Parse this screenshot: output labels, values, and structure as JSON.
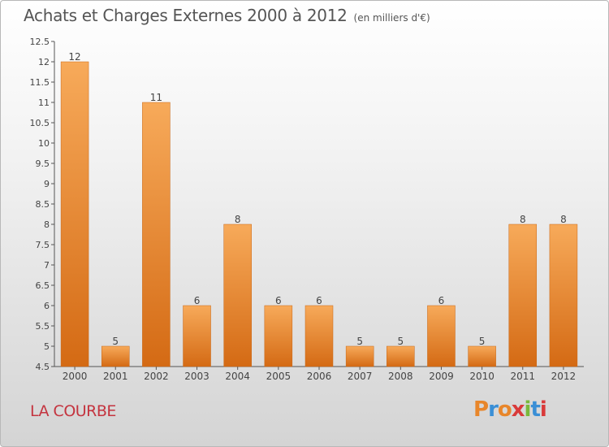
{
  "title": "Achats et Charges Externes 2000 à 2012",
  "subtitle": "(en milliers d'€)",
  "location": "LA COURBE",
  "logo_text": "Proxiti",
  "logo_colors": [
    "#e8862a",
    "#3a8fd6",
    "#e8862a",
    "#d93a3a",
    "#7ab83a",
    "#3a8fd6",
    "#d93a3a"
  ],
  "chart_data": {
    "type": "bar",
    "categories": [
      "2000",
      "2001",
      "2002",
      "2003",
      "2004",
      "2005",
      "2006",
      "2007",
      "2008",
      "2009",
      "2010",
      "2011",
      "2012"
    ],
    "values": [
      12,
      5,
      11,
      6,
      8,
      6,
      6,
      5,
      5,
      6,
      5,
      8,
      8
    ],
    "ylim": [
      4.5,
      12.5
    ],
    "yticks": [
      "4.5",
      "5",
      "5.5",
      "6",
      "6.5",
      "7",
      "7.5",
      "8",
      "8.5",
      "9",
      "9.5",
      "10",
      "10.5",
      "11",
      "11.5",
      "12",
      "12.5"
    ],
    "bar_color": "#e8862a",
    "grid": false,
    "xlabel": "",
    "ylabel": ""
  }
}
